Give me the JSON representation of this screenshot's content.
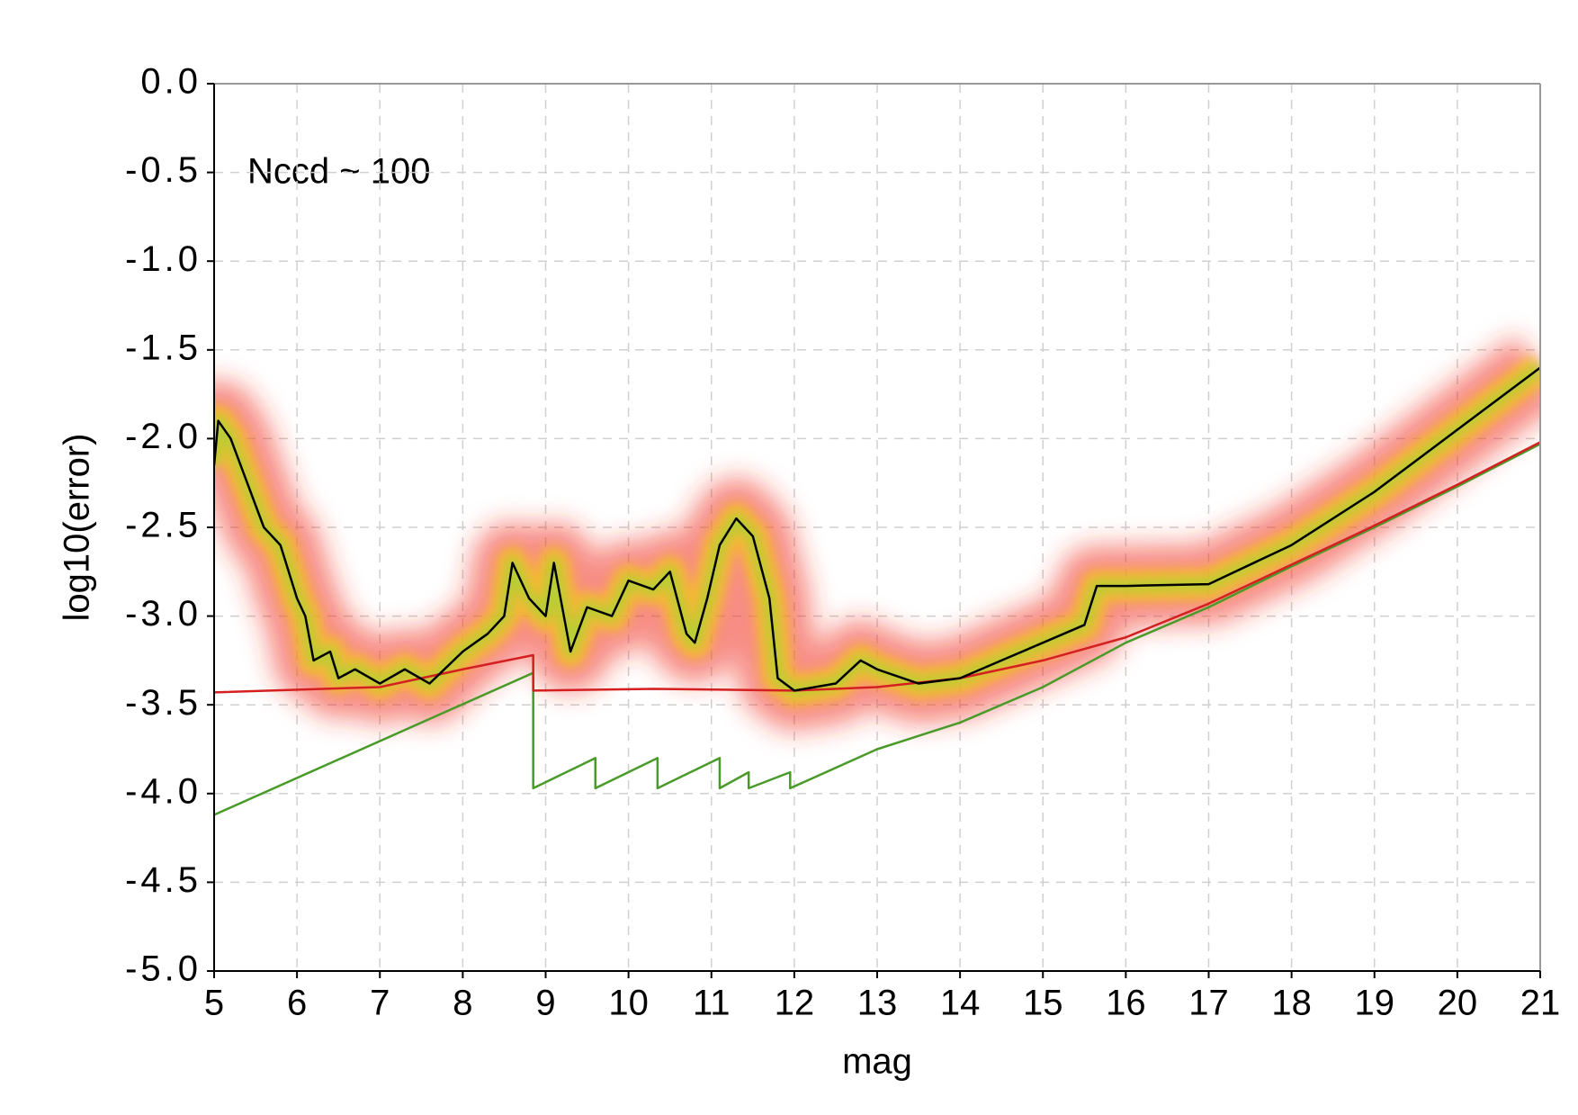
{
  "chart_data": {
    "type": "line",
    "xlabel": "mag",
    "ylabel": "log10(error)",
    "annotation": "Nccd ~ 100",
    "xlim": [
      5,
      21
    ],
    "xticks": [
      5,
      6,
      7,
      8,
      9,
      10,
      11,
      12,
      13,
      14,
      15,
      16,
      17,
      18,
      19,
      20,
      21
    ],
    "ylim": [
      -5,
      0
    ],
    "yticks": [
      {
        "value": 0,
        "label": "0.0"
      },
      {
        "value": -0.5,
        "label": "-0.5"
      },
      {
        "value": -1,
        "label": "-1.0"
      },
      {
        "value": -1.5,
        "label": "-1.5"
      },
      {
        "value": -2,
        "label": "-2.0"
      },
      {
        "value": -2.5,
        "label": "-2.5"
      },
      {
        "value": -3,
        "label": "-3.0"
      },
      {
        "value": -3.5,
        "label": "-3.5"
      },
      {
        "value": -4,
        "label": "-4.0"
      },
      {
        "value": -4.5,
        "label": "-4.5"
      },
      {
        "value": -5,
        "label": "-5.0"
      }
    ],
    "grid": true,
    "series": [
      {
        "color": "#000000",
        "x": [
          5.0,
          5.05,
          5.2,
          5.4,
          5.6,
          5.8,
          6.0,
          6.1,
          6.2,
          6.4,
          6.5,
          6.7,
          7.0,
          7.3,
          7.6,
          8.0,
          8.3,
          8.5,
          8.6,
          8.8,
          9.0,
          9.1,
          9.3,
          9.5,
          9.8,
          10.0,
          10.3,
          10.5,
          10.7,
          10.8,
          10.95,
          11.1,
          11.3,
          11.5,
          11.7,
          11.8,
          12.0,
          12.5,
          12.8,
          13.0,
          13.5,
          14.0,
          14.5,
          15.0,
          15.5,
          15.65,
          16.0,
          17.0,
          18.0,
          19.0,
          20.0,
          21.0
        ],
        "y": [
          -2.15,
          -1.9,
          -2.0,
          -2.25,
          -2.5,
          -2.6,
          -2.9,
          -3.0,
          -3.25,
          -3.2,
          -3.35,
          -3.3,
          -3.38,
          -3.3,
          -3.38,
          -3.2,
          -3.1,
          -3.0,
          -2.7,
          -2.9,
          -3.0,
          -2.7,
          -3.2,
          -2.95,
          -3.0,
          -2.8,
          -2.85,
          -2.75,
          -3.1,
          -3.15,
          -2.9,
          -2.6,
          -2.45,
          -2.55,
          -2.9,
          -3.35,
          -3.42,
          -3.38,
          -3.25,
          -3.3,
          -3.38,
          -3.35,
          -3.25,
          -3.15,
          -3.05,
          -2.83,
          -2.83,
          -2.82,
          -2.6,
          -2.3,
          -1.95,
          -1.6
        ]
      },
      {
        "color": "#d42020",
        "x": [
          5,
          7,
          8,
          8.85,
          8.85,
          10.3,
          12,
          13,
          14,
          15,
          16,
          17,
          18,
          19,
          20,
          21
        ],
        "y": [
          -3.43,
          -3.4,
          -3.3,
          -3.22,
          -3.42,
          -3.41,
          -3.42,
          -3.4,
          -3.35,
          -3.25,
          -3.12,
          -2.93,
          -2.71,
          -2.49,
          -2.26,
          -2.02
        ]
      },
      {
        "color": "#4a9a2a",
        "x": [
          5,
          8.85,
          8.85,
          9.6,
          9.6,
          10.35,
          10.35,
          11.1,
          11.1,
          11.45,
          11.45,
          11.95,
          11.95,
          13,
          14,
          15,
          16,
          17,
          18,
          19,
          20,
          21
        ],
        "y": [
          -4.12,
          -3.32,
          -3.97,
          -3.8,
          -3.97,
          -3.8,
          -3.97,
          -3.8,
          -3.97,
          -3.88,
          -3.97,
          -3.88,
          -3.97,
          -3.75,
          -3.6,
          -3.4,
          -3.15,
          -2.95,
          -2.72,
          -2.5,
          -2.27,
          -2.03
        ]
      }
    ]
  }
}
